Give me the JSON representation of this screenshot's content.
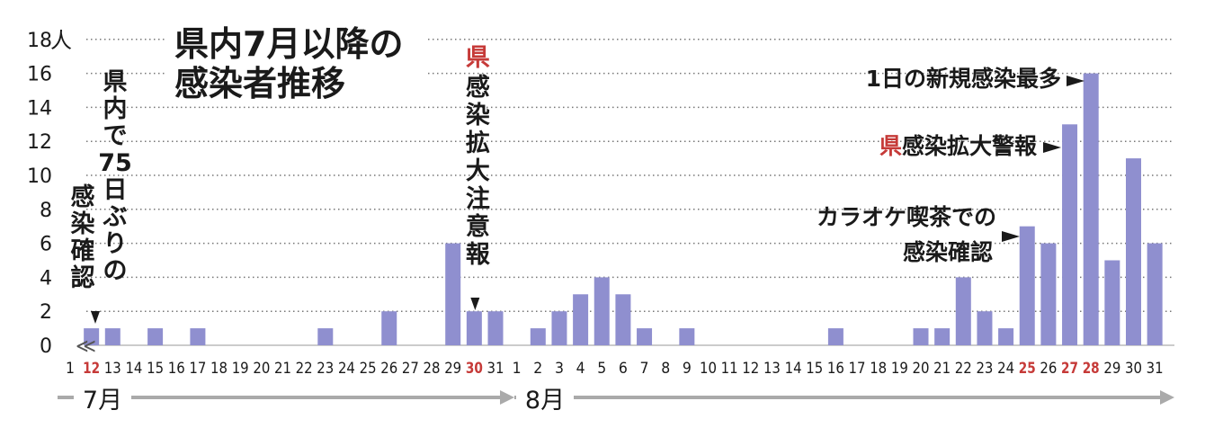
{
  "chart_data": {
    "type": "bar",
    "title_lines": [
      "県内7月以降の",
      "感染者推移"
    ],
    "y_unit": "人",
    "ylim": [
      0,
      18
    ],
    "y_ticks": [
      0,
      2,
      4,
      6,
      8,
      10,
      12,
      14,
      16,
      18
    ],
    "grid": "dotted horizontal",
    "x_tick_labels": [
      "1",
      "12",
      "13",
      "14",
      "15",
      "16",
      "17",
      "18",
      "19",
      "20",
      "21",
      "22",
      "23",
      "24",
      "25",
      "26",
      "27",
      "28",
      "29",
      "30",
      "31",
      "1",
      "2",
      "3",
      "4",
      "5",
      "6",
      "7",
      "8",
      "9",
      "10",
      "11",
      "12",
      "13",
      "14",
      "15",
      "16",
      "17",
      "18",
      "19",
      "20",
      "21",
      "22",
      "23",
      "24",
      "25",
      "26",
      "27",
      "28",
      "29",
      "30",
      "31"
    ],
    "x_label_red": [
      false,
      true,
      false,
      false,
      false,
      false,
      false,
      false,
      false,
      false,
      false,
      false,
      false,
      false,
      false,
      false,
      false,
      false,
      false,
      true,
      false,
      false,
      false,
      false,
      false,
      false,
      false,
      false,
      false,
      false,
      false,
      false,
      false,
      false,
      false,
      false,
      false,
      false,
      false,
      false,
      false,
      false,
      false,
      false,
      false,
      true,
      false,
      true,
      true,
      false,
      false,
      false
    ],
    "values": [
      null,
      1,
      1,
      0,
      1,
      0,
      1,
      0,
      0,
      0,
      0,
      0,
      1,
      0,
      0,
      2,
      0,
      0,
      6,
      2,
      2,
      0,
      1,
      2,
      3,
      4,
      3,
      1,
      0,
      1,
      0,
      0,
      0,
      0,
      0,
      0,
      1,
      0,
      0,
      0,
      1,
      1,
      4,
      2,
      1,
      7,
      6,
      13,
      16,
      5,
      11,
      6
    ],
    "months": [
      "7月",
      "8月"
    ],
    "annotations": {
      "first_case": [
        "県",
        "内",
        "で",
        "75",
        "日",
        "ぶ",
        "り",
        "の",
        "感",
        "染",
        "確",
        "認"
      ],
      "pref_caution_lead": "県",
      "pref_caution": [
        "感",
        "染",
        "拡",
        "大",
        "注",
        "意",
        "報"
      ],
      "max_daily_text": "1日の新規感染最多",
      "pref_warning_lead": "県",
      "pref_warning_text": "感染拡大警報",
      "karaoke_line1": "カラオケ喫茶での",
      "karaoke_line2": "感染確認"
    },
    "colors": {
      "bar": "#8f8fcf",
      "text": "#1a1a1a",
      "accent_red": "#c63a38",
      "grid": "#777777",
      "month_arrow": "#aaaaaa"
    }
  }
}
